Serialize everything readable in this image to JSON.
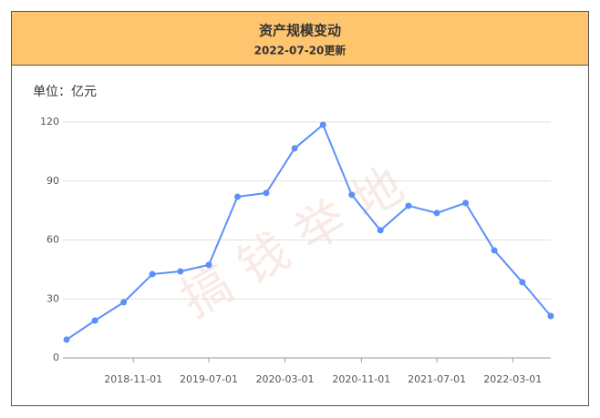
{
  "header": {
    "title": "资产规模变动",
    "subtitle": "2022-07-20更新"
  },
  "chart_data": {
    "type": "line",
    "unit_label": "单位：亿元",
    "watermark": "搞钱举地",
    "x": [
      "2018-04-01",
      "2018-07-01",
      "2018-10-01",
      "2019-01-01",
      "2019-04-01",
      "2019-07-01",
      "2019-10-01",
      "2020-01-01",
      "2020-04-01",
      "2020-07-01",
      "2020-10-01",
      "2021-01-01",
      "2021-04-01",
      "2021-07-01",
      "2021-10-01",
      "2022-01-01",
      "2022-04-01",
      "2022-07-01"
    ],
    "series": [
      {
        "color": "#5b8ff9",
        "values": [
          9.3,
          19,
          28.3,
          42.6,
          44,
          47.3,
          82,
          83.9,
          106.6,
          118.6,
          83,
          64.9,
          77.4,
          73.7,
          78.8,
          54.7,
          38.5,
          21.3
        ]
      }
    ],
    "xlim": [
      "2018-04-01",
      "2022-07-01"
    ],
    "xticks": [
      "2018-11-01",
      "2019-07-01",
      "2020-03-01",
      "2020-11-01",
      "2021-07-01",
      "2022-03-01"
    ],
    "ylim": [
      0,
      120
    ],
    "yticks": [
      0,
      30,
      60,
      90,
      120
    ],
    "grid": true
  }
}
